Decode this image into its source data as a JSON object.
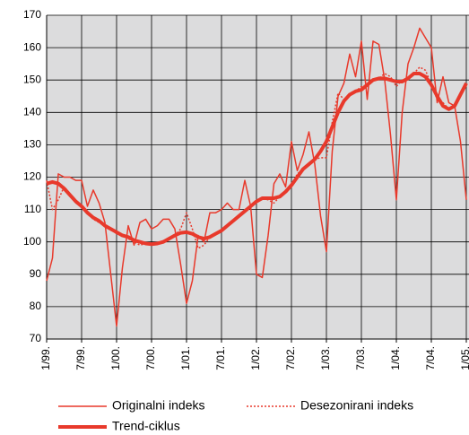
{
  "chart_data": {
    "type": "line",
    "categories": [
      "1/99.",
      null,
      null,
      null,
      null,
      null,
      "7/99.",
      null,
      null,
      null,
      null,
      null,
      "1/00.",
      null,
      null,
      null,
      null,
      null,
      "7/00.",
      null,
      null,
      null,
      null,
      null,
      "1/01.",
      null,
      null,
      null,
      null,
      null,
      "7/01.",
      null,
      null,
      null,
      null,
      null,
      "1/02.",
      null,
      null,
      null,
      null,
      null,
      "7/02.",
      null,
      null,
      null,
      null,
      null,
      "1/03.",
      null,
      null,
      null,
      null,
      null,
      "7/03.",
      null,
      null,
      null,
      null,
      null,
      "1/04.",
      null,
      null,
      null,
      null,
      null,
      "7/04.",
      null,
      null,
      null,
      null,
      null,
      "1/05."
    ],
    "series": [
      {
        "name": "Originalni indeks",
        "color": "#e8392b",
        "width": 1.5,
        "dash": "solid",
        "values": [
          88,
          95,
          121,
          120,
          120,
          119,
          119,
          111,
          116,
          112,
          106,
          90,
          74,
          92,
          105,
          99,
          106,
          107,
          104,
          105,
          107,
          107,
          104,
          93,
          81,
          88,
          102,
          100,
          109,
          109,
          110,
          112,
          110,
          110,
          119,
          111,
          90,
          89,
          102,
          118,
          121,
          117,
          131,
          122,
          127,
          134,
          124,
          108,
          97,
          128,
          145,
          149,
          158,
          151,
          162,
          144,
          162,
          161,
          150,
          133,
          113,
          140,
          155,
          160,
          166,
          163,
          160,
          143,
          151,
          143,
          142,
          131,
          113
        ]
      },
      {
        "name": "Desezonirani indeks",
        "color": "#e8392b",
        "width": 1.5,
        "dash": "dotted",
        "values": [
          119,
          110,
          113,
          117,
          115,
          112,
          111,
          109,
          107,
          106,
          105,
          104,
          102.5,
          102,
          101,
          100,
          99,
          99.5,
          99,
          99.5,
          100,
          101,
          102,
          104,
          109,
          104,
          98,
          99,
          101.5,
          102.5,
          103.5,
          105,
          106.5,
          108,
          109.5,
          111,
          112.5,
          113.5,
          113,
          112,
          114,
          115.5,
          117.5,
          121,
          122.5,
          124,
          125.5,
          126,
          126,
          137,
          146,
          144,
          145.5,
          146.5,
          148,
          148.5,
          150,
          150.5,
          152,
          151,
          148,
          150,
          150.5,
          152,
          154,
          153,
          148.5,
          144,
          143,
          141,
          142,
          145.5,
          149
        ]
      },
      {
        "name": "Trend-ciklus",
        "color": "#e8392b",
        "width": 4,
        "dash": "solid",
        "values": [
          118,
          118.5,
          118,
          116.5,
          114.5,
          112.5,
          111,
          109,
          107.5,
          106.5,
          105,
          104,
          103,
          102,
          101.5,
          100.5,
          100,
          99.5,
          99.3,
          99.5,
          100,
          101,
          102,
          102.8,
          103,
          102.5,
          101.5,
          101,
          101.5,
          102.5,
          103.5,
          105,
          106.5,
          108,
          109.5,
          111,
          112.5,
          113.5,
          113.5,
          113.5,
          114,
          115.5,
          117.5,
          120,
          122.5,
          124,
          125.5,
          128,
          131,
          135.5,
          140,
          143.5,
          145.5,
          146.5,
          147,
          148.5,
          150,
          150.5,
          150.5,
          150,
          149.5,
          149.5,
          150.5,
          152,
          152,
          151,
          148.5,
          145,
          142,
          141,
          142,
          145.5,
          149
        ]
      }
    ],
    "ylim": [
      70,
      170
    ],
    "yticks": [
      70,
      80,
      90,
      100,
      110,
      120,
      130,
      140,
      150,
      160,
      170
    ],
    "grid": true,
    "legend": "bottom"
  }
}
